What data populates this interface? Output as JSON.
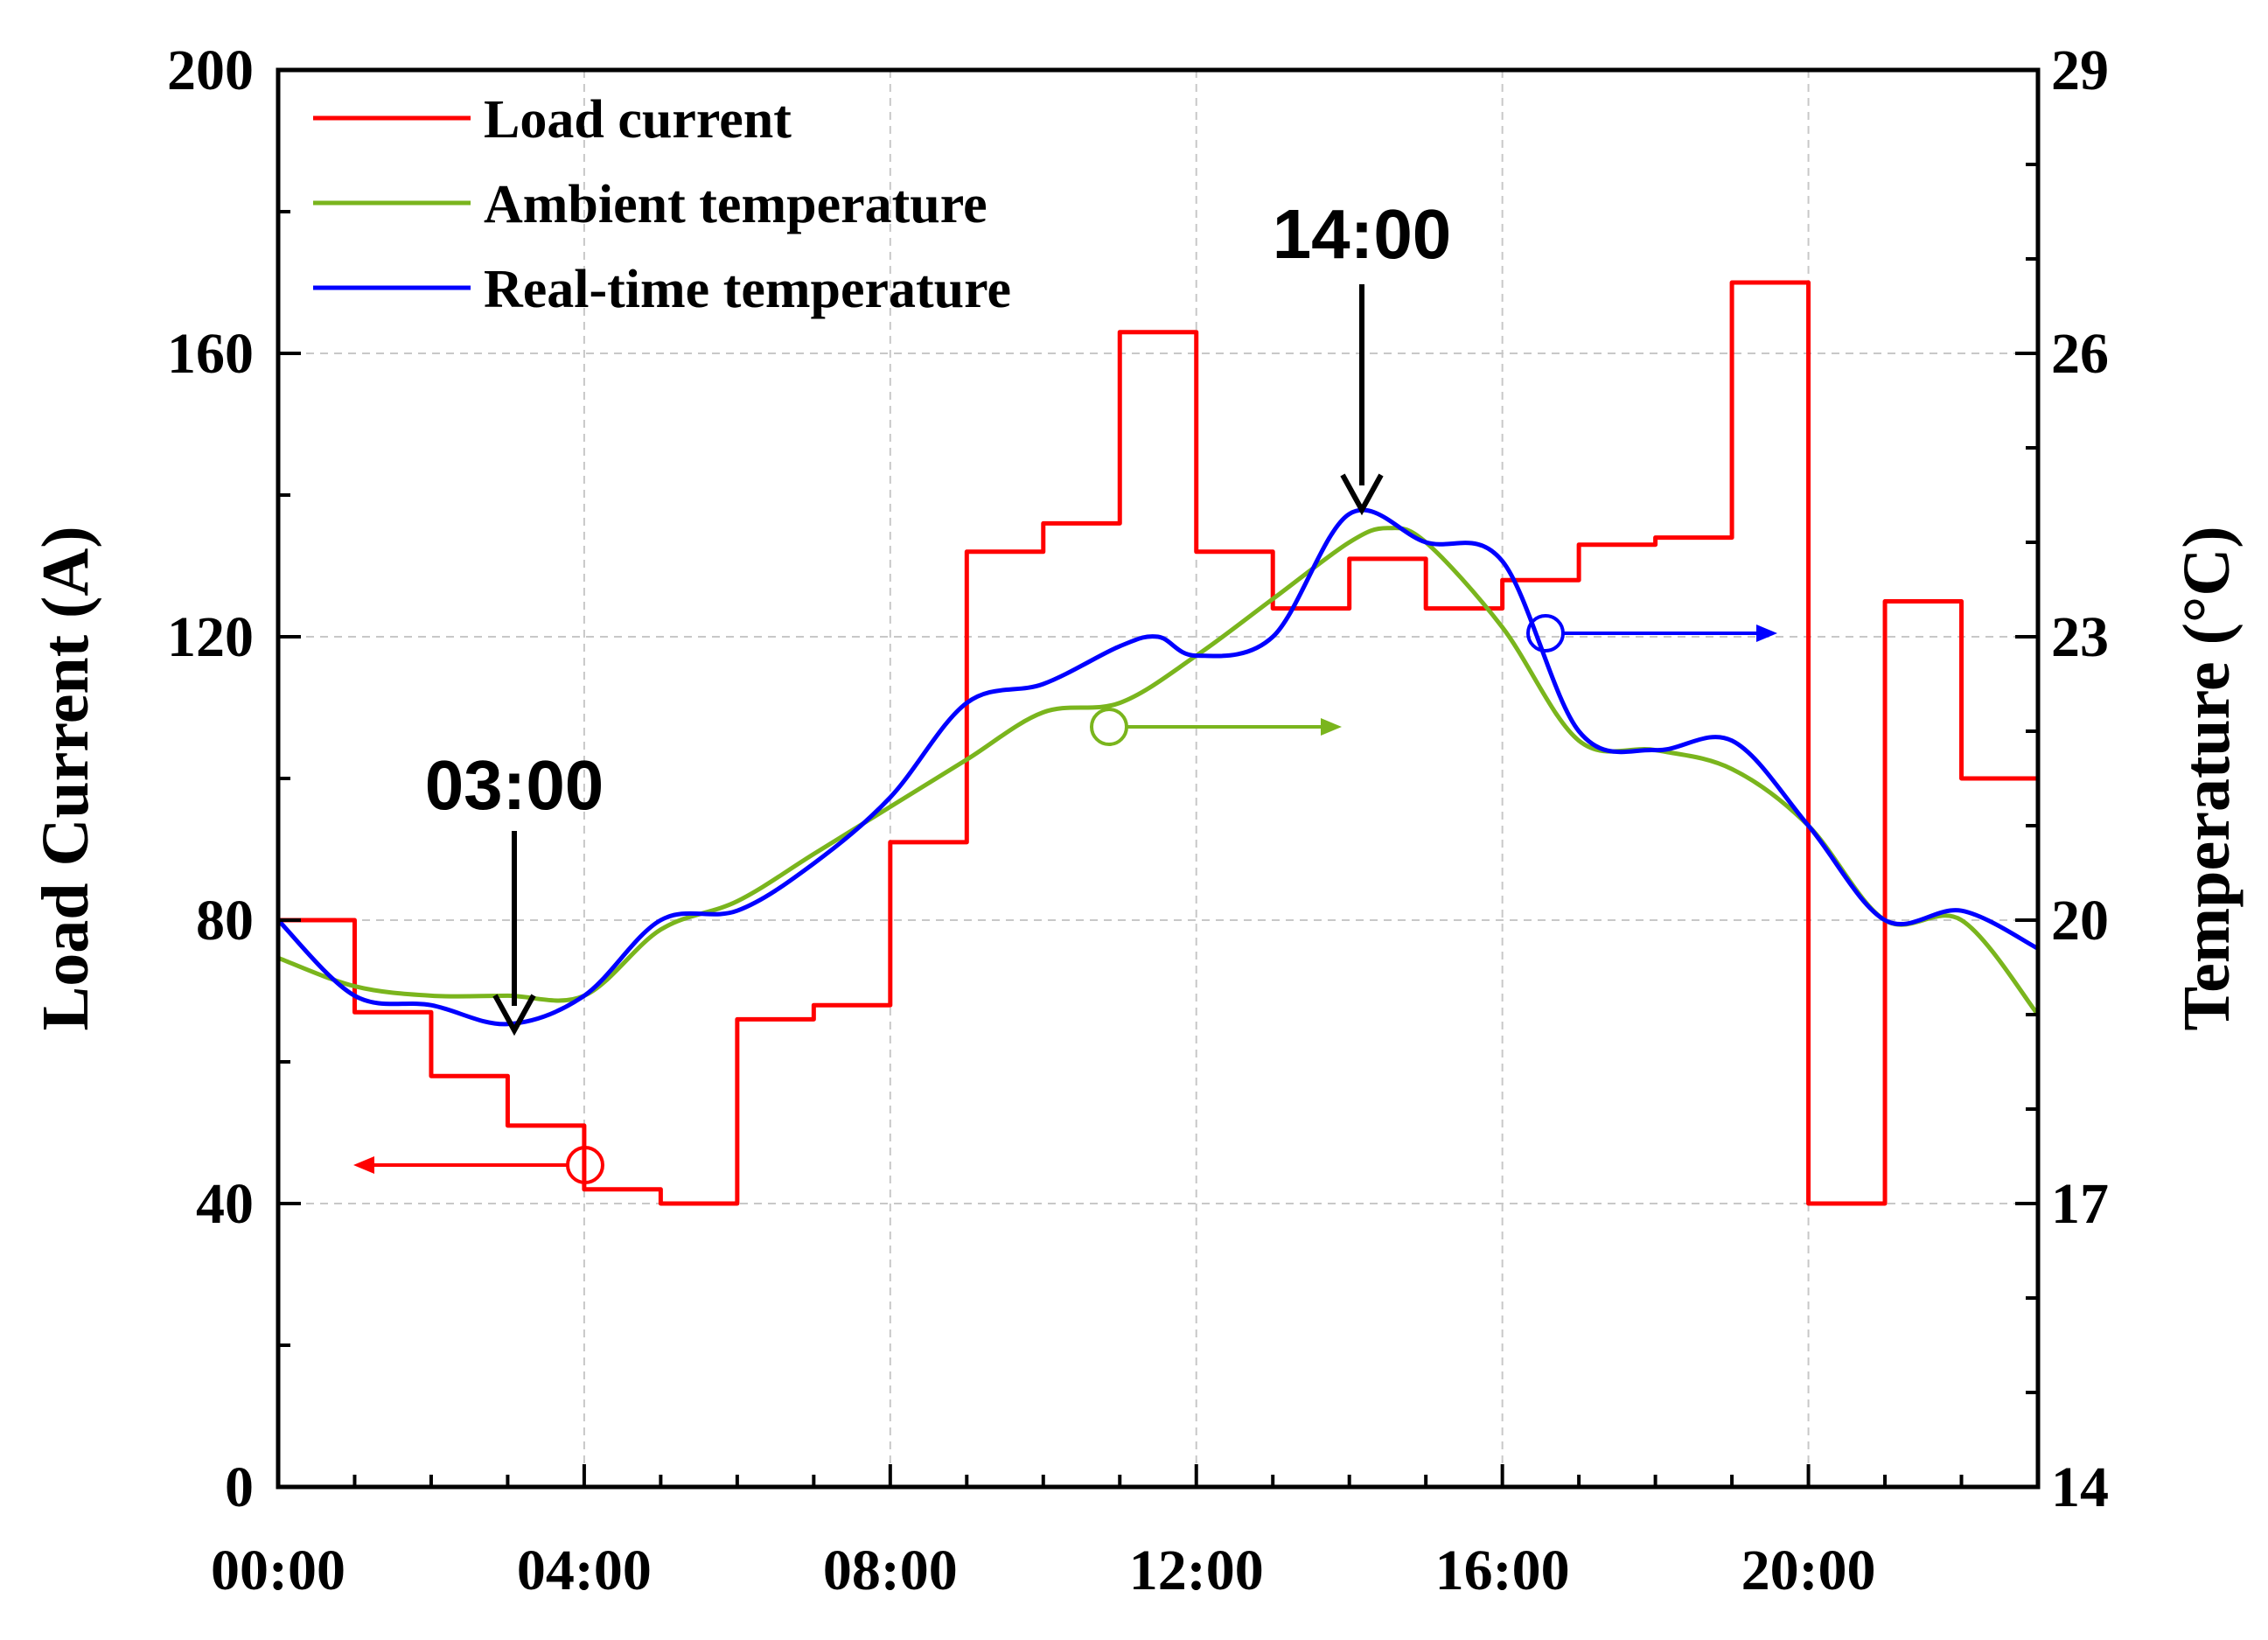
{
  "chart_data": {
    "type": "line",
    "x_ticks": [
      "00:00",
      "04:00",
      "08:00",
      "12:00",
      "16:00",
      "20:00"
    ],
    "xlim": [
      0,
      23
    ],
    "left_axis": {
      "label": "Load Current (A)",
      "ylim": [
        0,
        200
      ],
      "ticks": [
        "0",
        "40",
        "80",
        "120",
        "160",
        "200"
      ]
    },
    "right_axis": {
      "label": "Temperature (°C)",
      "ylim": [
        14,
        29
      ],
      "ticks": [
        "14",
        "17",
        "20",
        "23",
        "26",
        "29"
      ]
    },
    "grid": true,
    "legend_position": "top-left",
    "series": [
      {
        "name": "Load current",
        "axis": "left",
        "style": "step",
        "color": "#ff0000",
        "x": [
          0,
          1,
          2,
          3,
          4,
          5,
          6,
          7,
          8,
          9,
          10,
          11,
          12,
          13,
          14,
          15,
          16,
          17,
          18,
          19,
          20,
          21,
          22,
          23
        ],
        "values": [
          80,
          67,
          58,
          51,
          42,
          40,
          66,
          68,
          91,
          132,
          136,
          163,
          132,
          124,
          131,
          124,
          128,
          133,
          134,
          170,
          40,
          125,
          100,
          100
        ]
      },
      {
        "name": "Ambient temperature",
        "axis": "right",
        "style": "smooth",
        "color": "#7ab51d",
        "x": [
          0,
          1,
          2,
          3,
          4,
          5,
          6,
          7,
          8,
          9,
          10,
          11,
          12,
          13,
          14,
          14.5,
          15,
          16,
          17,
          18,
          19,
          20,
          21,
          22,
          23
        ],
        "values": [
          19.6,
          19.3,
          19.2,
          19.2,
          19.2,
          19.9,
          20.2,
          20.7,
          21.2,
          21.7,
          22.2,
          22.3,
          22.8,
          23.4,
          24.0,
          24.15,
          24.0,
          23.1,
          21.9,
          21.8,
          21.6,
          21.0,
          20.0,
          20.0,
          19.0
        ]
      },
      {
        "name": "Real-time temperature",
        "axis": "right",
        "style": "smooth",
        "color": "#0000ff",
        "x": [
          0,
          1,
          2,
          3,
          4,
          5,
          6,
          7,
          8,
          9,
          10,
          11,
          11.5,
          12,
          13,
          14,
          15,
          16,
          17,
          18,
          19,
          20,
          21,
          22,
          23
        ],
        "values": [
          20.0,
          19.2,
          19.1,
          18.9,
          19.2,
          20.0,
          20.1,
          20.6,
          21.3,
          22.3,
          22.5,
          22.9,
          23.0,
          22.8,
          23.0,
          24.3,
          24.0,
          23.8,
          22.0,
          21.8,
          21.9,
          21.0,
          20.0,
          20.1,
          19.7
        ]
      }
    ],
    "annotations": [
      {
        "text": "03:00",
        "x": 3,
        "points_to": "minimum of Real-time temperature"
      },
      {
        "text": "14:00",
        "x": 14.2,
        "points_to": "peak of Real-time temperature"
      }
    ],
    "axis_markers": [
      {
        "series": "Load current",
        "direction": "left",
        "x": 4,
        "y": 45.5
      },
      {
        "series": "Ambient temperature",
        "direction": "right",
        "x": 10.8,
        "y_temp": 22.07
      },
      {
        "series": "Real-time temperature",
        "direction": "right",
        "x": 16.6,
        "y_temp": 23.03
      }
    ]
  }
}
